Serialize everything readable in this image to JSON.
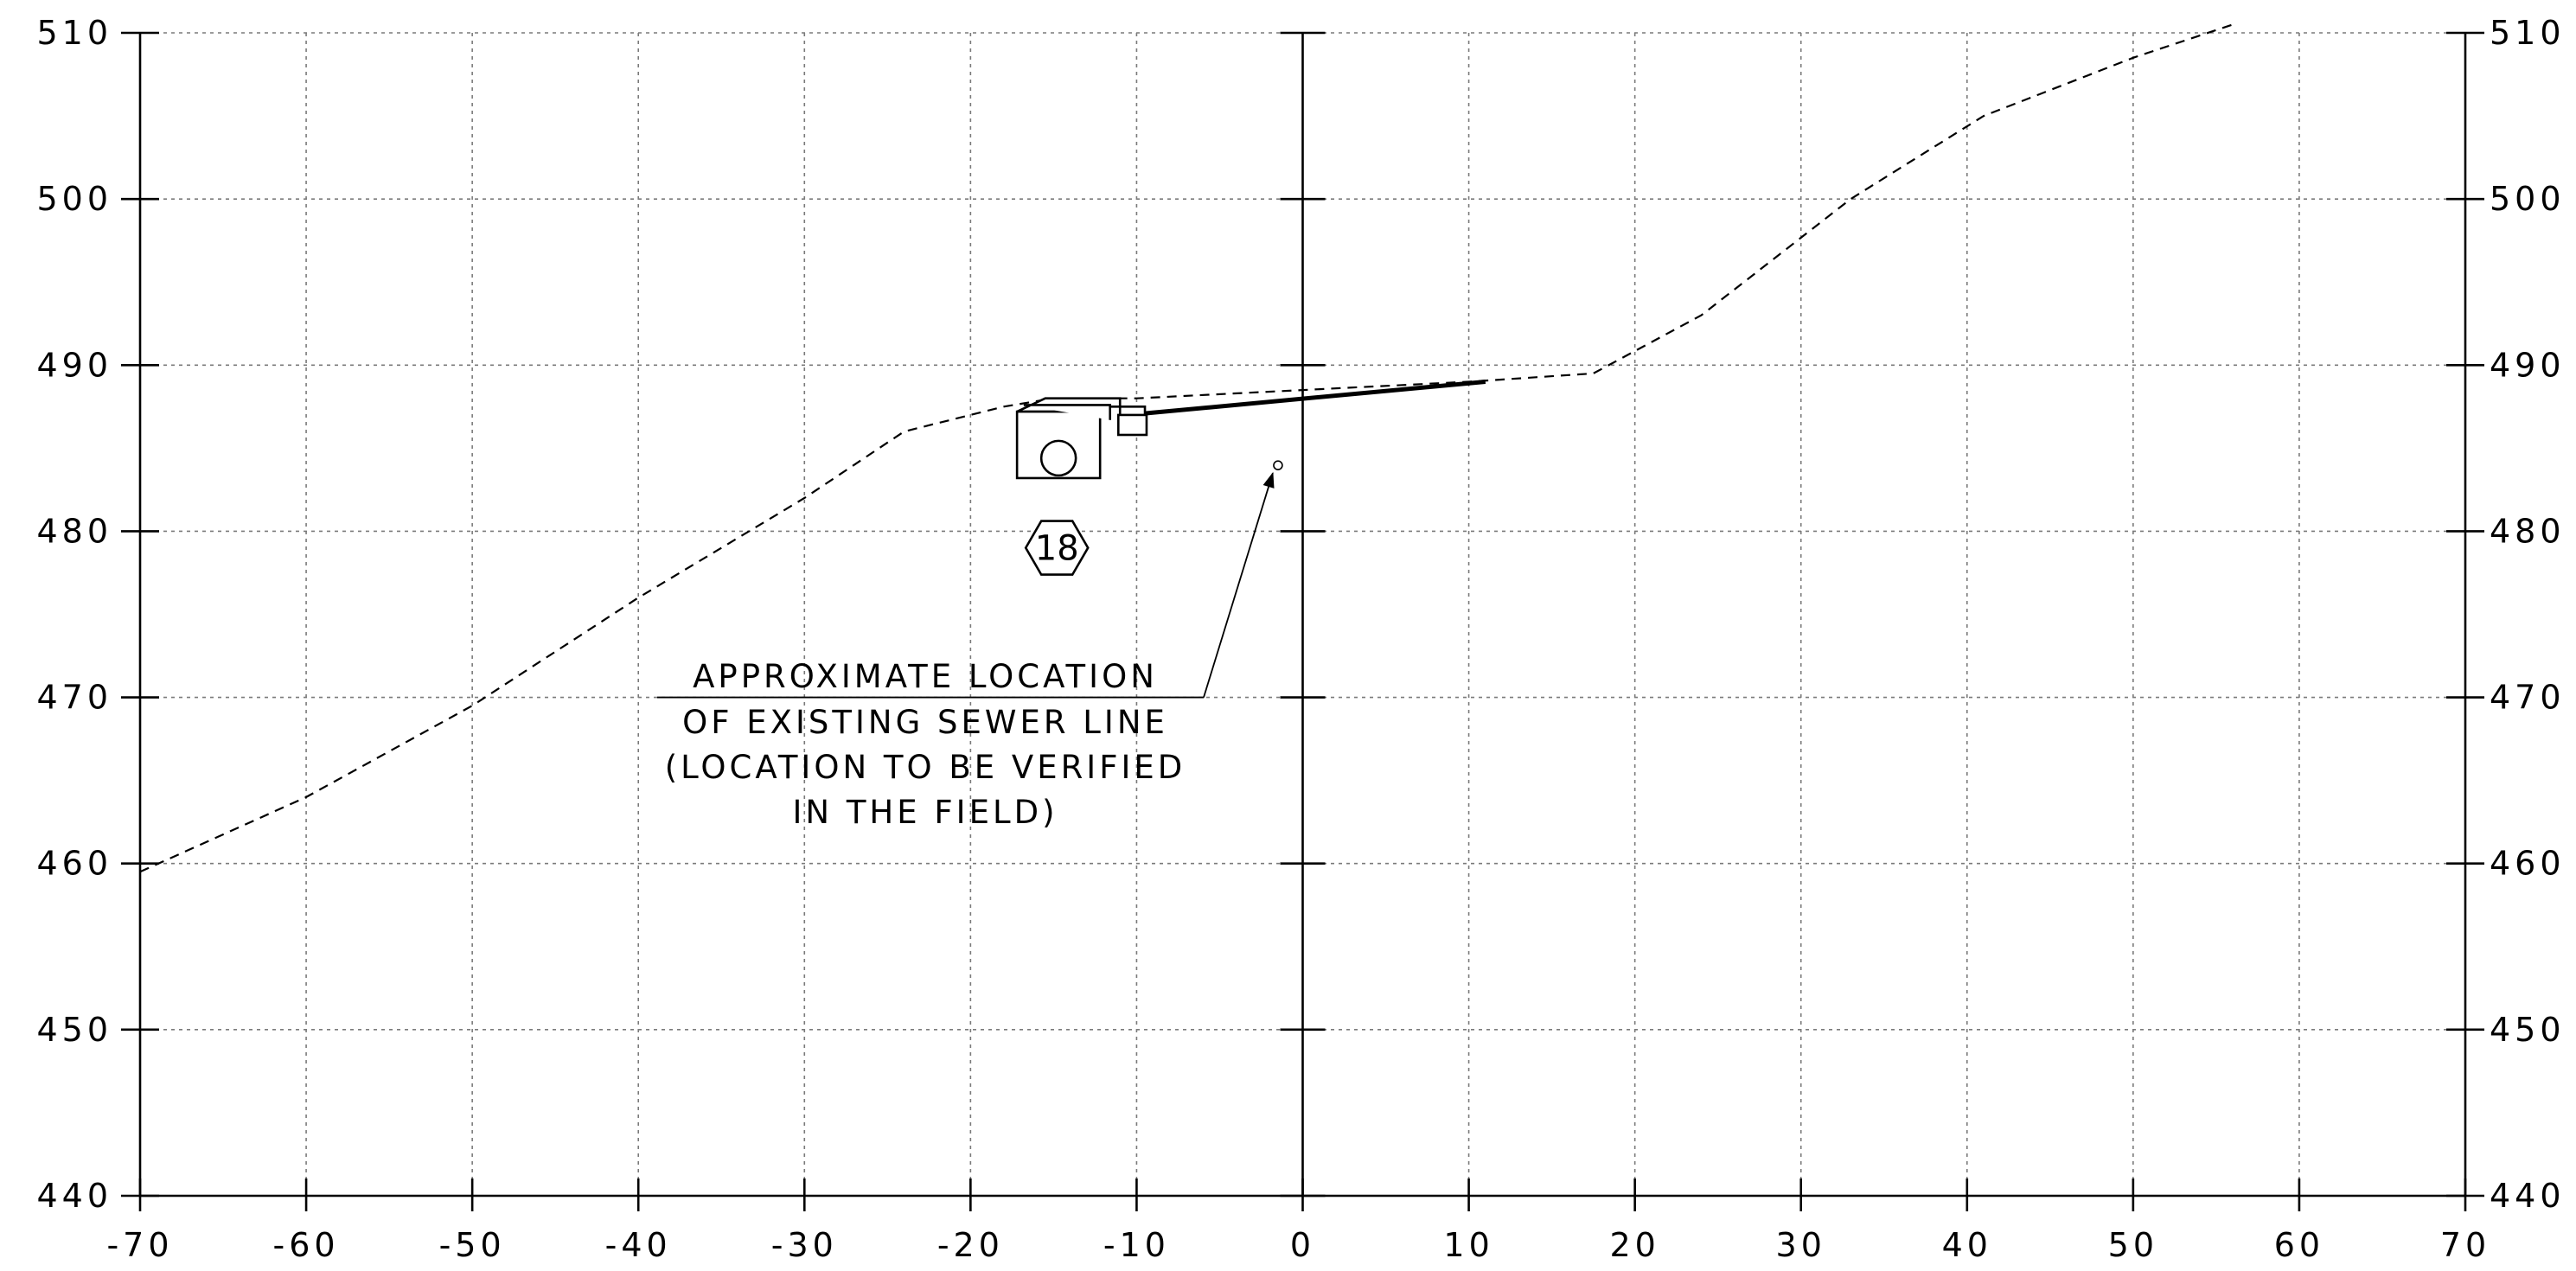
{
  "chart_data": {
    "type": "line",
    "x_range": [
      -70,
      70
    ],
    "y_range": [
      440,
      510
    ],
    "x_ticks": [
      -70,
      -60,
      -50,
      -40,
      -30,
      -20,
      -10,
      0,
      10,
      20,
      30,
      40,
      50,
      60,
      70
    ],
    "y_ticks": [
      440,
      450,
      460,
      470,
      480,
      490,
      500,
      510
    ],
    "x_tick_labels": [
      "-70",
      "-60",
      "-50",
      "-40",
      "-30",
      "-20",
      "-10",
      "0",
      "10",
      "20",
      "30",
      "40",
      "50",
      "60",
      "70"
    ],
    "y_tick_labels": [
      "440",
      "450",
      "460",
      "470",
      "480",
      "490",
      "500",
      "510"
    ],
    "grid": true,
    "series": [
      {
        "style": "dashed",
        "x": [
          -70,
          -60,
          -50,
          -40,
          -30,
          -24,
          -18,
          -15,
          -10,
          0,
          10,
          17.5,
          24,
          33,
          41,
          50,
          56
        ],
        "y": [
          459.5,
          464,
          469.5,
          476,
          482,
          486,
          487.5,
          488,
          488,
          488.5,
          489,
          489.5,
          493,
          500,
          505,
          508.5,
          510.5
        ]
      },
      {
        "style": "solid",
        "x": [
          -10.5,
          11
        ],
        "y": [
          487,
          489
        ]
      }
    ],
    "annotations": [
      {
        "lines": [
          "APPROXIMATE LOCATION",
          "OF EXISTING SEWER LINE",
          "(LOCATION TO BE VERIFIED",
          "IN THE FIELD)"
        ],
        "target": [
          -1.8,
          483.5
        ]
      }
    ],
    "markers": [
      {
        "label": "18",
        "shape": "hexagon",
        "x": -14.8,
        "y": 479
      }
    ]
  }
}
